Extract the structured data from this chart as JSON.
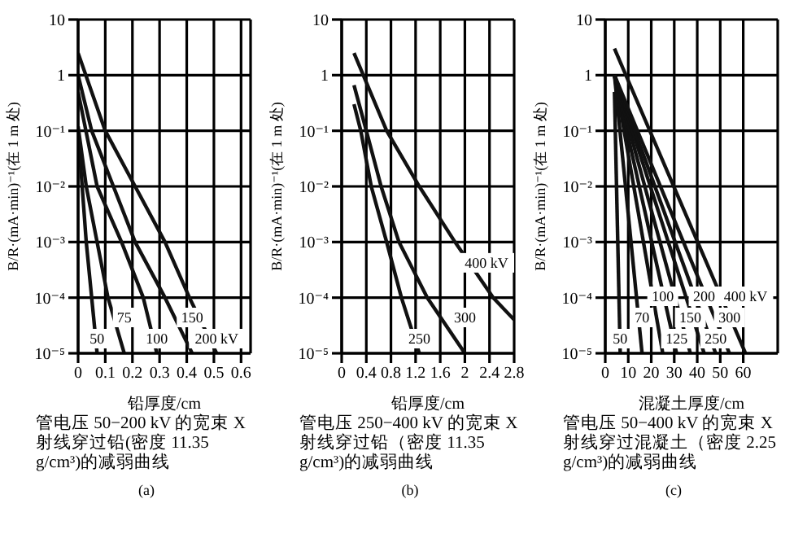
{
  "chart_data": [
    {
      "type": "line",
      "xlabel": "铅厚度/cm",
      "ylabel": "B/R·(mA·min)⁻¹(在 1 m 处)",
      "log": "y",
      "grid": true,
      "marker": "none",
      "line_style": "solid",
      "xlim": [
        0,
        0.635
      ],
      "xticks": [
        0,
        0.1,
        0.2,
        0.3,
        0.4,
        0.5,
        0.6
      ],
      "ylim": [
        1e-05,
        10
      ],
      "yticks": [
        {
          "value": 1e-05,
          "label": "10⁻⁵"
        },
        {
          "value": 0.0001,
          "label": "10⁻⁴"
        },
        {
          "value": 0.001,
          "label": "10⁻³"
        },
        {
          "value": 0.01,
          "label": "10⁻²"
        },
        {
          "value": 0.1,
          "label": "10⁻¹"
        },
        {
          "value": 1,
          "label": "1"
        },
        {
          "value": 10,
          "label": "10"
        }
      ],
      "series": [
        {
          "name": "50",
          "color": "#111111",
          "x": [
            0,
            0.03,
            0.07
          ],
          "values": [
            0.1,
            0.001,
            1e-05
          ]
        },
        {
          "name": "75",
          "color": "#111111",
          "x": [
            0,
            0.03,
            0.07,
            0.11,
            0.17
          ],
          "values": [
            0.12,
            0.01,
            0.001,
            0.0001,
            1e-05
          ]
        },
        {
          "name": "100",
          "color": "#111111",
          "x": [
            0,
            0.07,
            0.16,
            0.24,
            0.29
          ],
          "values": [
            0.5,
            0.01,
            0.001,
            0.0001,
            1e-05
          ]
        },
        {
          "name": "150",
          "color": "#111111",
          "x": [
            0,
            0.05,
            0.13,
            0.21,
            0.32,
            0.42
          ],
          "values": [
            1,
            0.1,
            0.01,
            0.001,
            0.0001,
            1e-05
          ]
        },
        {
          "name": "200 kV",
          "color": "#111111",
          "x": [
            0,
            0.1,
            0.21,
            0.32,
            0.41,
            0.51
          ],
          "values": [
            2.5,
            0.1,
            0.01,
            0.001,
            0.0001,
            1e-05
          ]
        }
      ],
      "annotations": [
        "管电压 50−200 kV 的宽束 X 射线穿过铅(密度 11.35 g/cm³)的减弱曲线",
        "(a)"
      ]
    },
    {
      "type": "line",
      "xlabel": "铅厚度/cm",
      "ylabel": "B/R·(mA·min)⁻¹(在 1 m 处)",
      "log": "y",
      "grid": true,
      "marker": "none",
      "line_style": "solid",
      "xlim": [
        0,
        2.8
      ],
      "xticks": [
        0,
        0.4,
        0.8,
        1.2,
        1.6,
        2.0,
        2.4,
        2.8
      ],
      "ylim": [
        1e-05,
        10
      ],
      "yticks": [
        {
          "value": 1e-05,
          "label": "10⁻⁵"
        },
        {
          "value": 0.0001,
          "label": "10⁻⁴"
        },
        {
          "value": 0.001,
          "label": "10⁻³"
        },
        {
          "value": 0.01,
          "label": "10⁻²"
        },
        {
          "value": 0.1,
          "label": "10⁻¹"
        },
        {
          "value": 1,
          "label": "1"
        },
        {
          "value": 10,
          "label": "10"
        }
      ],
      "series": [
        {
          "name": "250",
          "color": "#111111",
          "x": [
            0.2,
            0.31,
            0.48,
            0.73,
            0.97,
            1.26
          ],
          "values": [
            0.3,
            0.1,
            0.01,
            0.001,
            0.0001,
            1e-05
          ]
        },
        {
          "name": "300",
          "color": "#111111",
          "x": [
            0.2,
            0.4,
            0.64,
            0.93,
            1.39,
            2.0
          ],
          "values": [
            0.66,
            0.1,
            0.01,
            0.001,
            0.0001,
            1e-05
          ]
        },
        {
          "name": "400 kV",
          "color": "#111111",
          "x": [
            0.2,
            0.73,
            1.26,
            1.84,
            2.46,
            2.8
          ],
          "values": [
            2.5,
            0.1,
            0.01,
            0.001,
            0.0001,
            4e-05
          ]
        }
      ],
      "annotations": [
        "管电压 250−400 kV 的宽束 X 射线穿过铅（密度 11.35 g/cm³)的减弱曲线",
        "(b)"
      ]
    },
    {
      "type": "line",
      "xlabel": "混凝土厚度/cm",
      "ylabel": "B/R·(mA·min)⁻¹(在 1 m 处)",
      "log": "y",
      "grid": true,
      "marker": "none",
      "line_style": "solid",
      "xlim": [
        0,
        75
      ],
      "xticks": [
        0,
        10,
        20,
        30,
        40,
        50,
        60
      ],
      "ylim": [
        1e-05,
        10
      ],
      "yticks": [
        {
          "value": 1e-05,
          "label": "10⁻⁵"
        },
        {
          "value": 0.0001,
          "label": "10⁻⁴"
        },
        {
          "value": 0.001,
          "label": "10⁻³"
        },
        {
          "value": 0.01,
          "label": "10⁻²"
        },
        {
          "value": 0.1,
          "label": "10⁻¹"
        },
        {
          "value": 1,
          "label": "1"
        },
        {
          "value": 10,
          "label": "10"
        }
      ],
      "series": [
        {
          "name": "50",
          "color": "#111111",
          "x": [
            4,
            6.5
          ],
          "values": [
            0.5,
            1e-05
          ]
        },
        {
          "name": "70",
          "color": "#111111",
          "x": [
            4,
            16
          ],
          "values": [
            1,
            1e-05
          ]
        },
        {
          "name": "100",
          "color": "#111111",
          "x": [
            4,
            25
          ],
          "values": [
            1,
            1e-05
          ]
        },
        {
          "name": "125",
          "color": "#111111",
          "x": [
            4,
            31
          ],
          "values": [
            1,
            1e-05
          ]
        },
        {
          "name": "150",
          "color": "#111111",
          "x": [
            4,
            37
          ],
          "values": [
            1,
            1e-05
          ]
        },
        {
          "name": "200",
          "color": "#111111",
          "x": [
            4,
            43
          ],
          "values": [
            1,
            1e-05
          ]
        },
        {
          "name": "250",
          "color": "#111111",
          "x": [
            4,
            48
          ],
          "values": [
            1,
            1e-05
          ]
        },
        {
          "name": "300",
          "color": "#111111",
          "x": [
            4,
            54
          ],
          "values": [
            1,
            1e-05
          ]
        },
        {
          "name": "400 kV",
          "color": "#111111",
          "x": [
            4,
            61
          ],
          "values": [
            3,
            1e-05
          ]
        }
      ],
      "annotations": [
        "管电压 50−400 kV 的宽束 X 射线穿过混凝土（密度 2.25 g/cm³)的减弱曲线",
        "(c)"
      ]
    }
  ]
}
